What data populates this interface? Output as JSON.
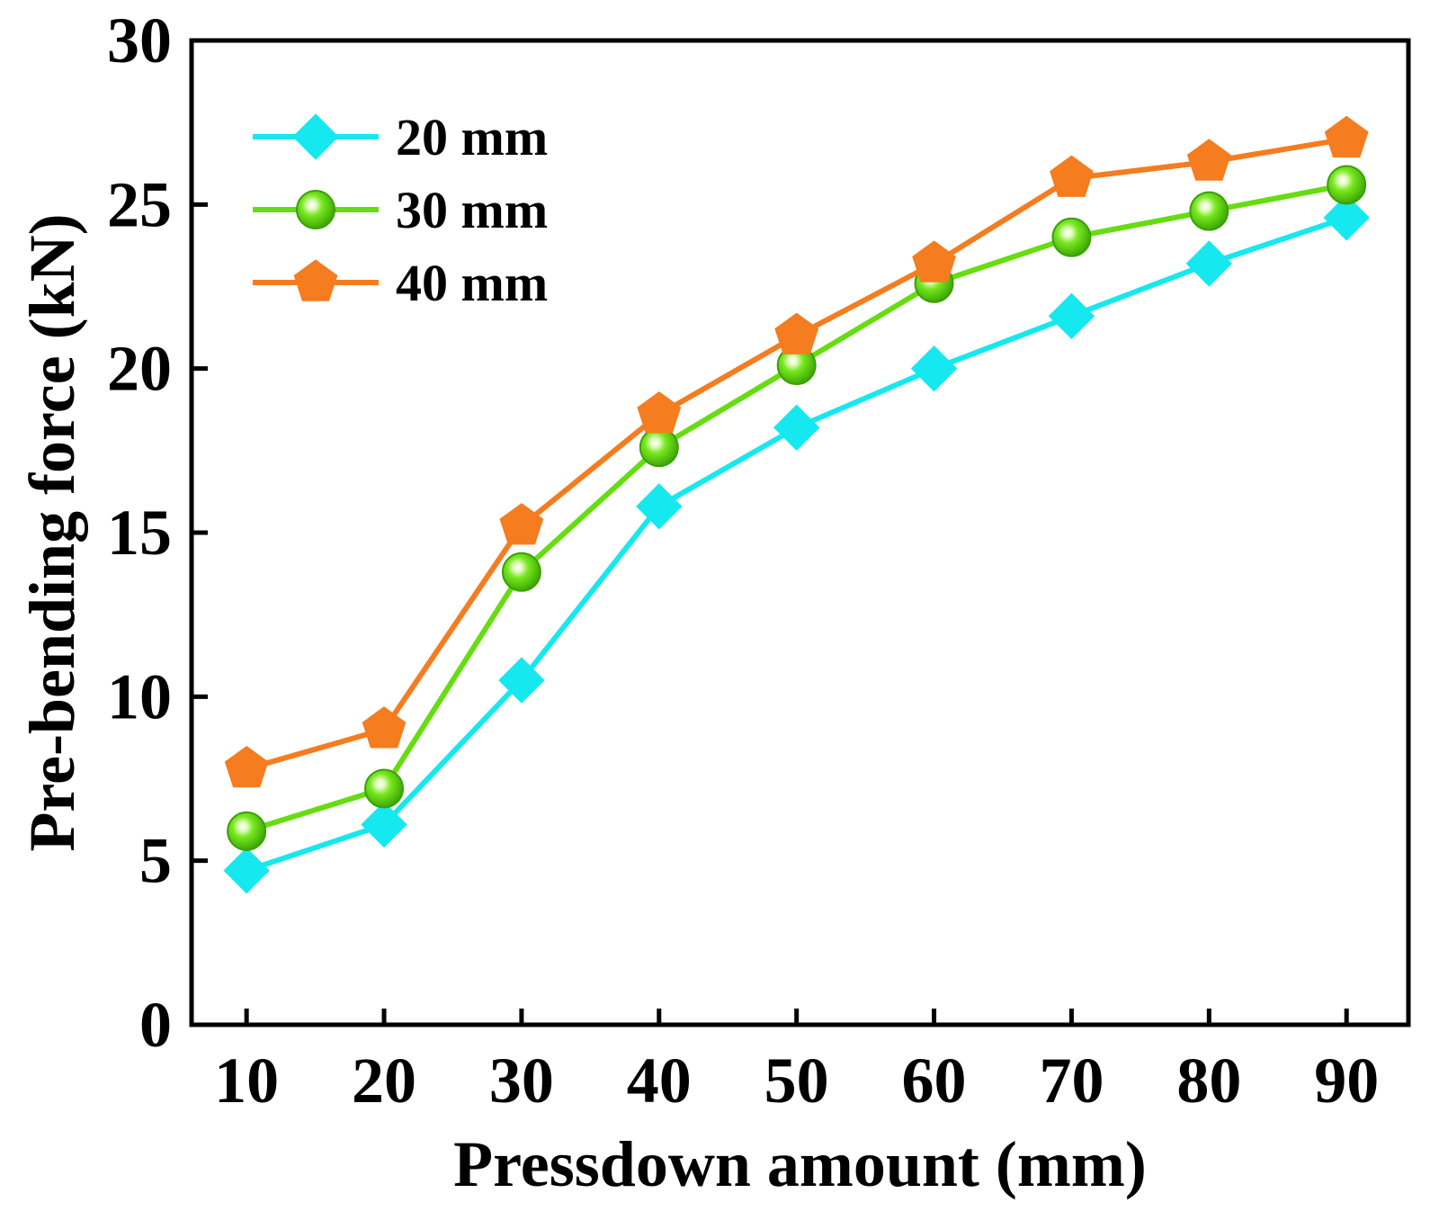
{
  "chart_data": {
    "type": "line",
    "title": "",
    "xlabel": "Pressdown amount (mm)",
    "ylabel": "Pre-bending force (kN)",
    "x": [
      10,
      20,
      30,
      40,
      50,
      60,
      70,
      80,
      90
    ],
    "x_tick_labels": [
      "10",
      "20",
      "30",
      "40",
      "50",
      "60",
      "70",
      "80",
      "90"
    ],
    "xlim": [
      6,
      94.5
    ],
    "ylim": [
      0,
      30
    ],
    "y_ticks": [
      0,
      5,
      10,
      15,
      20,
      25,
      30
    ],
    "y_tick_labels": [
      "0",
      "5",
      "10",
      "15",
      "20",
      "25",
      "30"
    ],
    "grid": false,
    "legend_position": "top-left",
    "series": [
      {
        "name": "20 mm",
        "marker": "diamond",
        "color": "#16e8f0",
        "values": [
          4.7,
          6.1,
          10.5,
          15.8,
          18.2,
          20.0,
          21.6,
          23.2,
          24.6
        ]
      },
      {
        "name": "30 mm",
        "marker": "sphere",
        "color": "#66dd11",
        "values": [
          5.9,
          7.2,
          13.8,
          17.6,
          20.1,
          22.6,
          24.0,
          24.8,
          25.6
        ]
      },
      {
        "name": "40 mm",
        "marker": "pentagon",
        "color": "#f57c1f",
        "values": [
          7.8,
          9.0,
          15.2,
          18.6,
          21.0,
          23.2,
          25.8,
          26.3,
          27.0
        ]
      }
    ]
  }
}
